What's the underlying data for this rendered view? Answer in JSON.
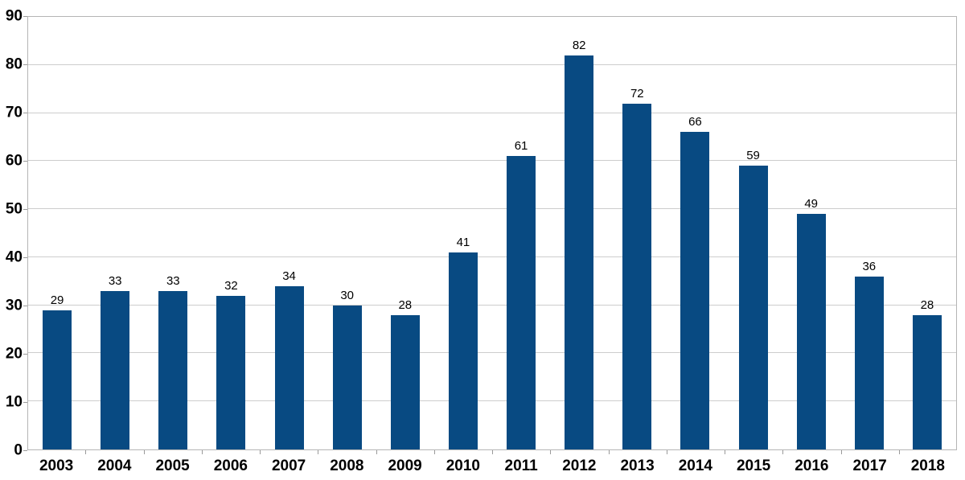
{
  "chart_data": {
    "type": "bar",
    "title": "",
    "xlabel": "",
    "ylabel": "",
    "categories": [
      "2003",
      "2004",
      "2005",
      "2006",
      "2007",
      "2008",
      "2009",
      "2010",
      "2011",
      "2012",
      "2013",
      "2014",
      "2015",
      "2016",
      "2017",
      "2018"
    ],
    "values": [
      29,
      33,
      33,
      32,
      34,
      30,
      28,
      41,
      61,
      82,
      72,
      66,
      59,
      49,
      36,
      28
    ],
    "ylim": [
      0,
      90
    ],
    "ytick_step": 10,
    "ytick_labels": [
      "0",
      "10",
      "20",
      "30",
      "40",
      "50",
      "60",
      "70",
      "80",
      "90"
    ],
    "grid": "horizontal",
    "legend": "none",
    "data_labels": "above-bars",
    "colors": {
      "bar_fill": "#084a82",
      "gridline": "#cdcdcd",
      "plot_border": "#b5b5b5",
      "tick": "#9a9a9a",
      "text": "#000000",
      "background": "#ffffff"
    }
  }
}
